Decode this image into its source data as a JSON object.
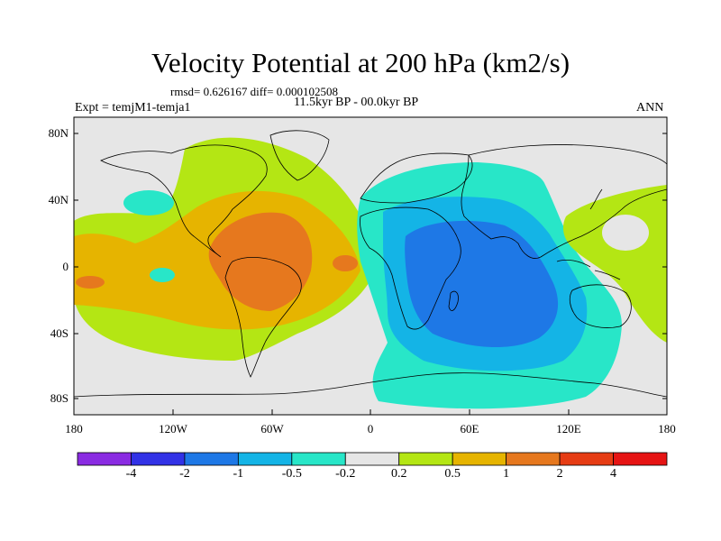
{
  "title": "Velocity Potential at 200 hPa (km2/s)",
  "stats": "rmsd= 0.626167 diff= 0.000102508",
  "period": "11.5kyr BP - 00.0kyr BP",
  "experiment": "Expt = temjM1-temja1",
  "season": "ANN",
  "lat_labels": [
    "80N",
    "40N",
    "0",
    "40S",
    "80S"
  ],
  "lon_labels": [
    "180",
    "120W",
    "60W",
    "0",
    "60E",
    "120E",
    "180"
  ],
  "colorbar": {
    "labels": [
      "-4",
      "-2",
      "-1",
      "-0.5",
      "-0.2",
      "0.2",
      "0.5",
      "1",
      "2",
      "4"
    ],
    "colors": [
      "#8a2be2",
      "#3232e6",
      "#1e78e6",
      "#14b4e6",
      "#28e6c8",
      "#e6e6e6",
      "#b4e614",
      "#e6b400",
      "#e6781e",
      "#e63c14",
      "#e61414"
    ]
  },
  "map_colors": {
    "neutral": "#e6e6e6",
    "pos_weak": "#b4e614",
    "pos_mid": "#e6b400",
    "pos_strong": "#e6781e",
    "neg_weak": "#28e6c8",
    "neg_mid": "#14b4e6",
    "neg_strong": "#1e78e6"
  }
}
